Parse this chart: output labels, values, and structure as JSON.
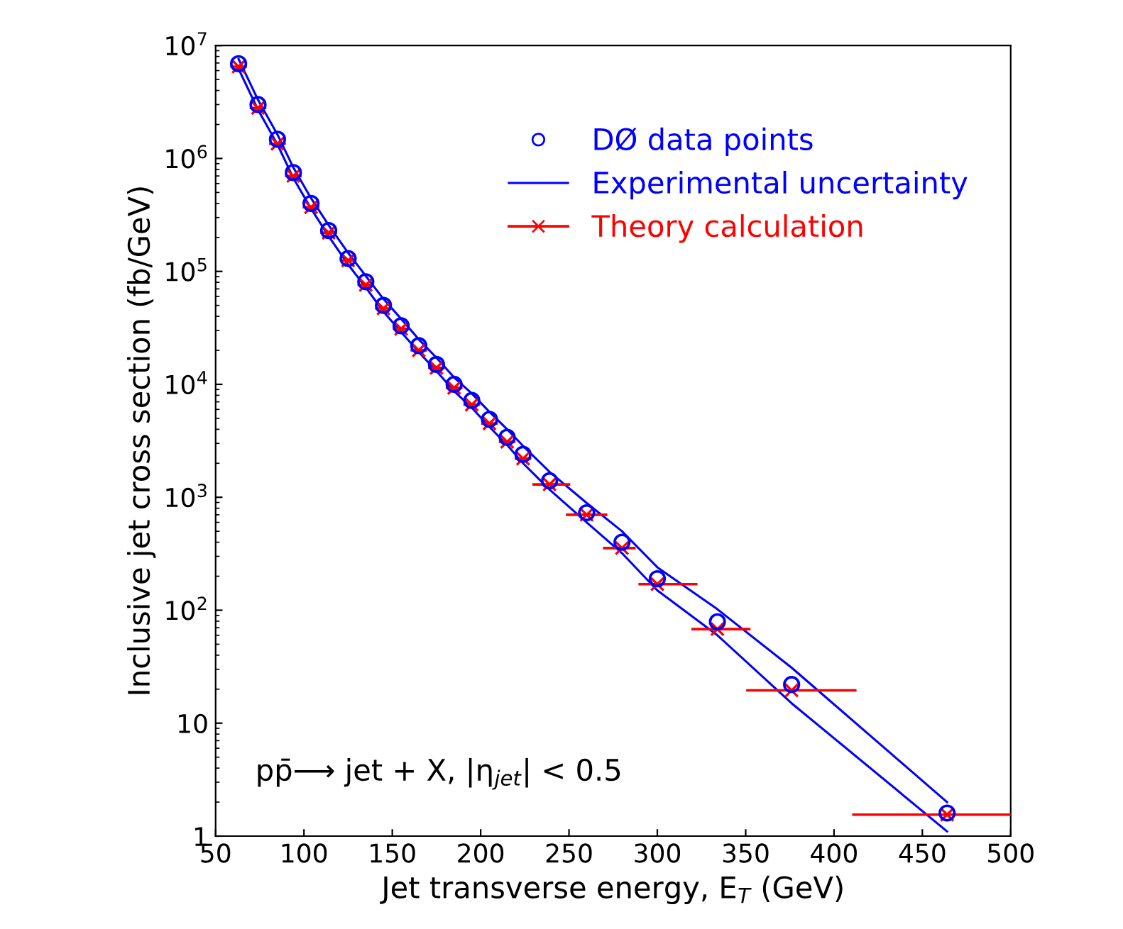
{
  "chart_data": {
    "type": "scatter",
    "xlabel": "Jet transverse energy, E$_{T}$ (GeV)",
    "ylabel": "Inclusive jet cross section (fb/GeV)",
    "log": "y",
    "xlim": [
      50,
      500
    ],
    "ylim": [
      1,
      10000000
    ],
    "xticks": [
      50,
      100,
      150,
      200,
      250,
      300,
      350,
      400,
      450,
      500
    ],
    "yticks": [
      1,
      10,
      {
        "value": 100,
        "label": "10$^{2}$"
      },
      {
        "value": 1000,
        "label": "10$^{3}$"
      },
      {
        "value": 10000,
        "label": "10$^{4}$"
      },
      {
        "value": 100000,
        "label": "10$^{5}$"
      },
      {
        "value": 1000000,
        "label": "10$^{6}$"
      },
      {
        "value": 10000000,
        "label": "10$^{7}$"
      }
    ],
    "x": [
      63,
      74,
      85,
      94,
      104,
      114,
      125,
      135,
      145,
      155,
      165,
      175,
      185,
      195,
      205,
      215,
      224,
      239,
      260,
      280,
      300,
      334,
      376,
      464
    ],
    "series": [
      {
        "name": "DØ data points",
        "marker": "circle",
        "color": "#0000ff",
        "values": [
          6900000,
          3000000,
          1480000,
          750000,
          400000,
          230000,
          130000,
          81000,
          50000,
          33000,
          22000,
          15000,
          10000,
          7200,
          4900,
          3400,
          2400,
          1400,
          730,
          400,
          190,
          79,
          22,
          1.6
        ]
      },
      {
        "name": "Experimental uncertainty",
        "type": "line",
        "color": "#0000ff",
        "values": [
          7600000,
          3300000,
          1630000,
          830000,
          445000,
          256000,
          146000,
          91000,
          57000,
          38000,
          25000,
          17200,
          11500,
          8300,
          5700,
          4000,
          2850,
          1680,
          890,
          500,
          240,
          102,
          31,
          2.0
        ]
      },
      {
        "type": "line",
        "color": "#0000ff",
        "values": [
          6200000,
          2700000,
          1330000,
          670000,
          360000,
          205000,
          115000,
          72000,
          44000,
          29000,
          19300,
          13100,
          8700,
          6200,
          4200,
          2900,
          2000,
          1170,
          600,
          320,
          150,
          60,
          15,
          1.1
        ]
      },
      {
        "name": "Theory calculation",
        "marker": "cross",
        "color": "#ff0000",
        "values": [
          6500000,
          2800000,
          1350000,
          700000,
          370000,
          220000,
          125000,
          76000,
          47000,
          31000,
          20000,
          14000,
          9300,
          6600,
          4500,
          3100,
          2200,
          1300,
          700,
          355,
          170,
          68,
          19.5,
          1.55
        ],
        "xerrors": [
          4,
          4,
          4,
          4,
          4,
          4,
          4,
          4,
          4,
          4,
          4,
          4,
          4,
          4,
          4,
          4,
          4,
          [
            230,
            250
          ],
          [
            249,
            271
          ],
          [
            270,
            287
          ],
          [
            290,
            322
          ],
          [
            320,
            352
          ],
          [
            351,
            412
          ],
          [
            411,
            500
          ]
        ]
      }
    ],
    "legend": "top right",
    "annotations": [
      {
        "text": "pp̄⟶ jet + X, |η$_{jet}$| < 0.5"
      }
    ]
  }
}
